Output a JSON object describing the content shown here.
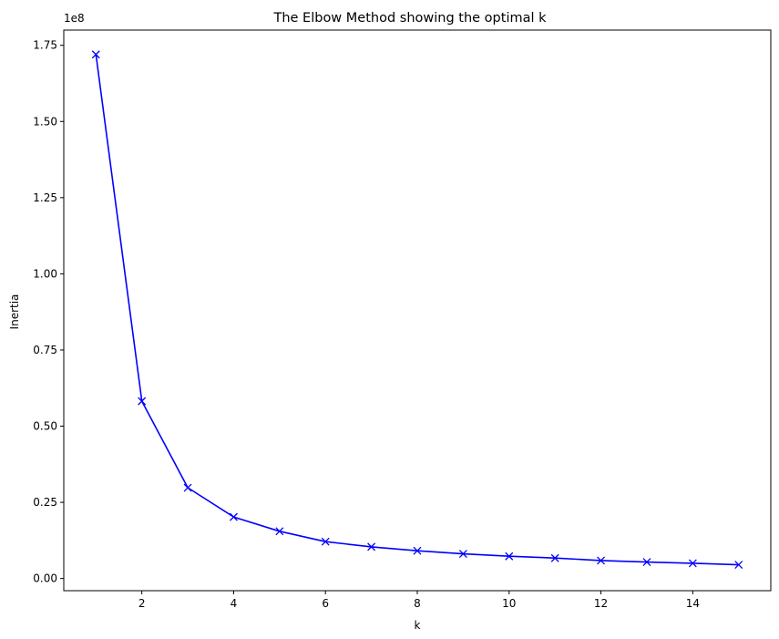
{
  "chart_data": {
    "type": "line",
    "title": "The Elbow Method showing the optimal k",
    "xlabel": "k",
    "ylabel": "Inertia",
    "y_offset_label": "1e8",
    "xlim": [
      0.3,
      15.7
    ],
    "ylim": [
      -0.04,
      1.8
    ],
    "xticks": [
      2,
      4,
      6,
      8,
      10,
      12,
      14
    ],
    "xtick_labels": [
      "2",
      "4",
      "6",
      "8",
      "10",
      "12",
      "14"
    ],
    "yticks": [
      0.0,
      0.25,
      0.5,
      0.75,
      1.0,
      1.25,
      1.5,
      1.75
    ],
    "ytick_labels": [
      "0.00",
      "0.25",
      "0.50",
      "0.75",
      "1.00",
      "1.25",
      "1.50",
      "1.75"
    ],
    "grid": false,
    "series": [
      {
        "marker": "x",
        "color": "#0000ff",
        "x": [
          1,
          2,
          3,
          4,
          5,
          6,
          7,
          8,
          9,
          10,
          11,
          12,
          13,
          14,
          15
        ],
        "y": [
          1.72,
          0.582,
          0.298,
          0.202,
          0.155,
          0.121,
          0.104,
          0.091,
          0.081,
          0.073,
          0.067,
          0.059,
          0.054,
          0.05,
          0.045
        ]
      }
    ]
  }
}
